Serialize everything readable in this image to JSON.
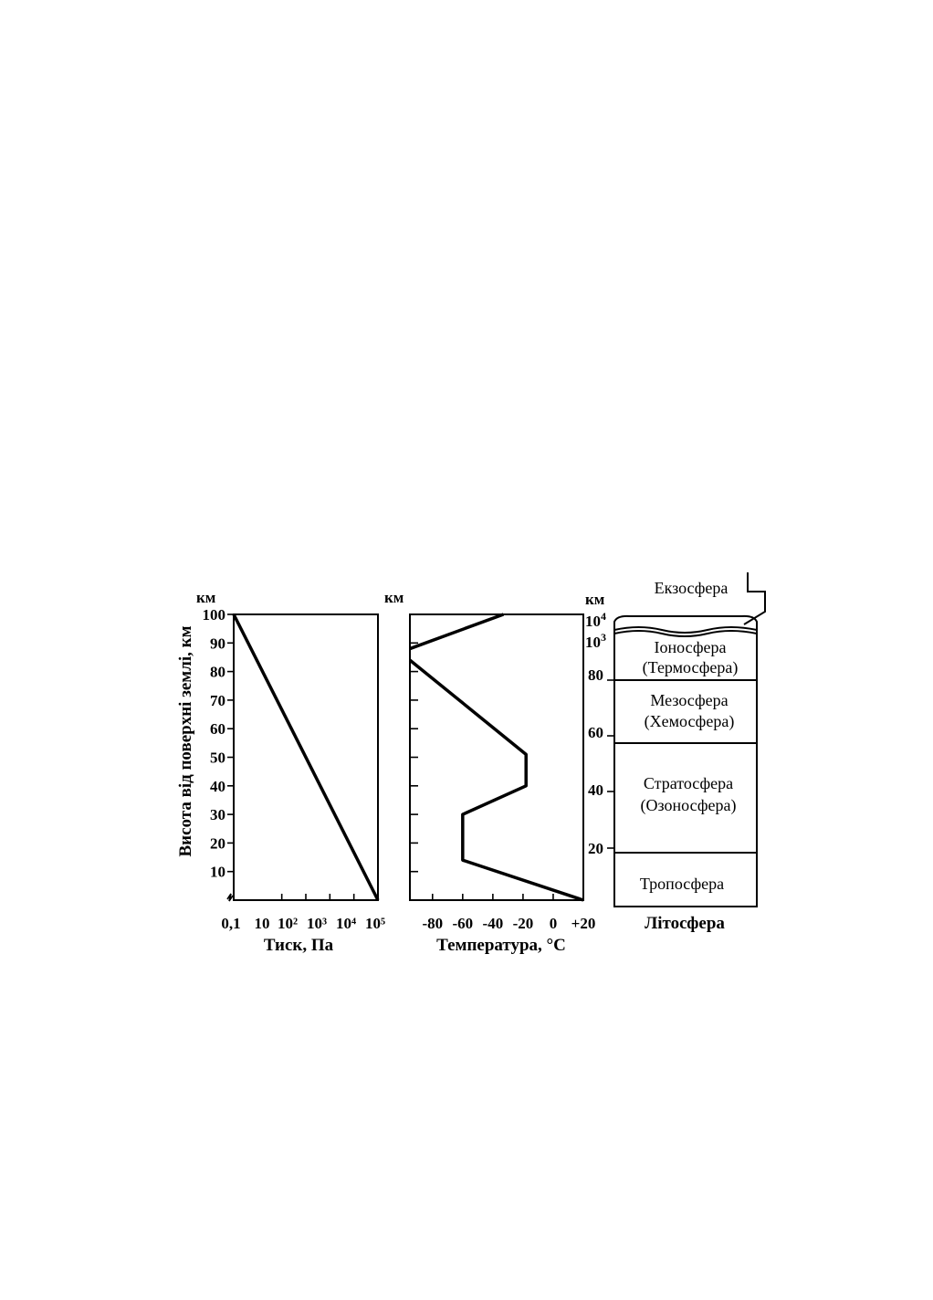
{
  "chart_data": [
    {
      "type": "line",
      "xlabel": "Тиск, Па",
      "ylabel": "Висота від поверхні землі, км",
      "y_unit": "км",
      "x_scale": "log",
      "x_tick_labels": [
        "0,1",
        "10",
        "10²",
        "10³",
        "10⁴",
        "10⁵"
      ],
      "y_ticks": [
        10,
        20,
        30,
        40,
        50,
        60,
        70,
        80,
        90,
        100
      ],
      "ylim": [
        0,
        100
      ],
      "series": [
        {
          "x": [
            100000,
            0.1
          ],
          "y": [
            0,
            100
          ]
        }
      ]
    },
    {
      "type": "line",
      "xlabel": "Температура, °С",
      "y_unit": "км",
      "x_tick_labels": [
        "-80",
        "-60",
        "-40",
        "-20",
        "0",
        "+20"
      ],
      "x_ticks": [
        -80,
        -60,
        -40,
        -20,
        0,
        20
      ],
      "xlim": [
        -95,
        20
      ],
      "ylim": [
        0,
        100
      ],
      "series": [
        {
          "x": [
            20,
            -60,
            -60,
            -18,
            -18,
            -95
          ],
          "y": [
            0,
            14,
            30,
            40,
            51,
            84
          ]
        },
        {
          "x": [
            -95,
            -33
          ],
          "y": [
            88,
            100
          ]
        }
      ]
    }
  ],
  "layers_column": {
    "unit": "км",
    "height_labels": [
      {
        "text": "10",
        "sup": "4"
      },
      {
        "text": "10",
        "sup": "3"
      },
      {
        "text": "80",
        "sup": ""
      },
      {
        "text": "60",
        "sup": ""
      },
      {
        "text": "40",
        "sup": ""
      },
      {
        "text": "20",
        "sup": ""
      }
    ],
    "layers": [
      {
        "name": "Екзосфера",
        "alt": ""
      },
      {
        "name": "Іоносфера",
        "alt": "(Термосфера)"
      },
      {
        "name": "Мезосфера",
        "alt": "(Хемосфера)"
      },
      {
        "name": "Стратосфера",
        "alt": "(Озоносфера)"
      },
      {
        "name": "Тропосфера",
        "alt": ""
      }
    ],
    "bottom_label": "Літосфера"
  }
}
